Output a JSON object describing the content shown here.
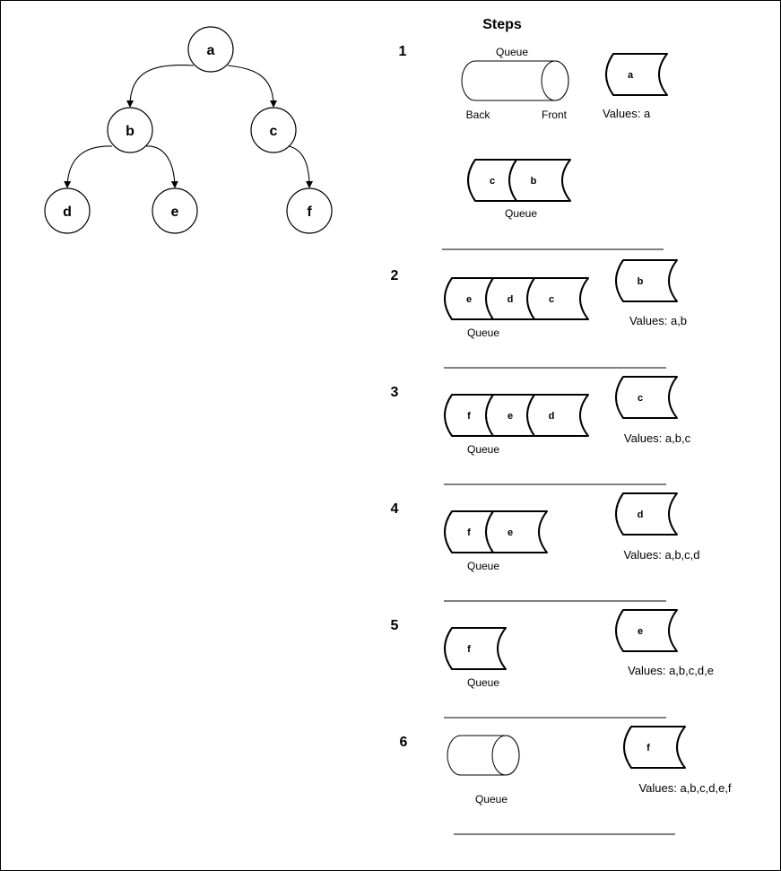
{
  "title": "Steps",
  "tree": {
    "nodes": [
      {
        "id": "a",
        "label": "a"
      },
      {
        "id": "b",
        "label": "b"
      },
      {
        "id": "c",
        "label": "c"
      },
      {
        "id": "d",
        "label": "d"
      },
      {
        "id": "e",
        "label": "e"
      },
      {
        "id": "f",
        "label": "f"
      }
    ],
    "edges": [
      [
        "a",
        "b"
      ],
      [
        "a",
        "c"
      ],
      [
        "b",
        "d"
      ],
      [
        "b",
        "e"
      ],
      [
        "c",
        "f"
      ]
    ]
  },
  "labels": {
    "queue": "Queue",
    "back": "Back",
    "front": "Front"
  },
  "steps": [
    {
      "number": "1",
      "queue": [
        "c",
        "b"
      ],
      "dequeued": "a",
      "values": "Values: a"
    },
    {
      "number": "2",
      "queue": [
        "e",
        "d",
        "c"
      ],
      "dequeued": "b",
      "values": "Values: a,b"
    },
    {
      "number": "3",
      "queue": [
        "f",
        "e",
        "d"
      ],
      "dequeued": "c",
      "values": "Values: a,b,c"
    },
    {
      "number": "4",
      "queue": [
        "f",
        "e"
      ],
      "dequeued": "d",
      "values": "Values: a,b,c,d"
    },
    {
      "number": "5",
      "queue": [
        "f"
      ],
      "dequeued": "e",
      "values": "Values: a,b,c,d,e"
    },
    {
      "number": "6",
      "queue": [],
      "dequeued": "f",
      "values": "Values: a,b,c,d,e,f"
    }
  ]
}
